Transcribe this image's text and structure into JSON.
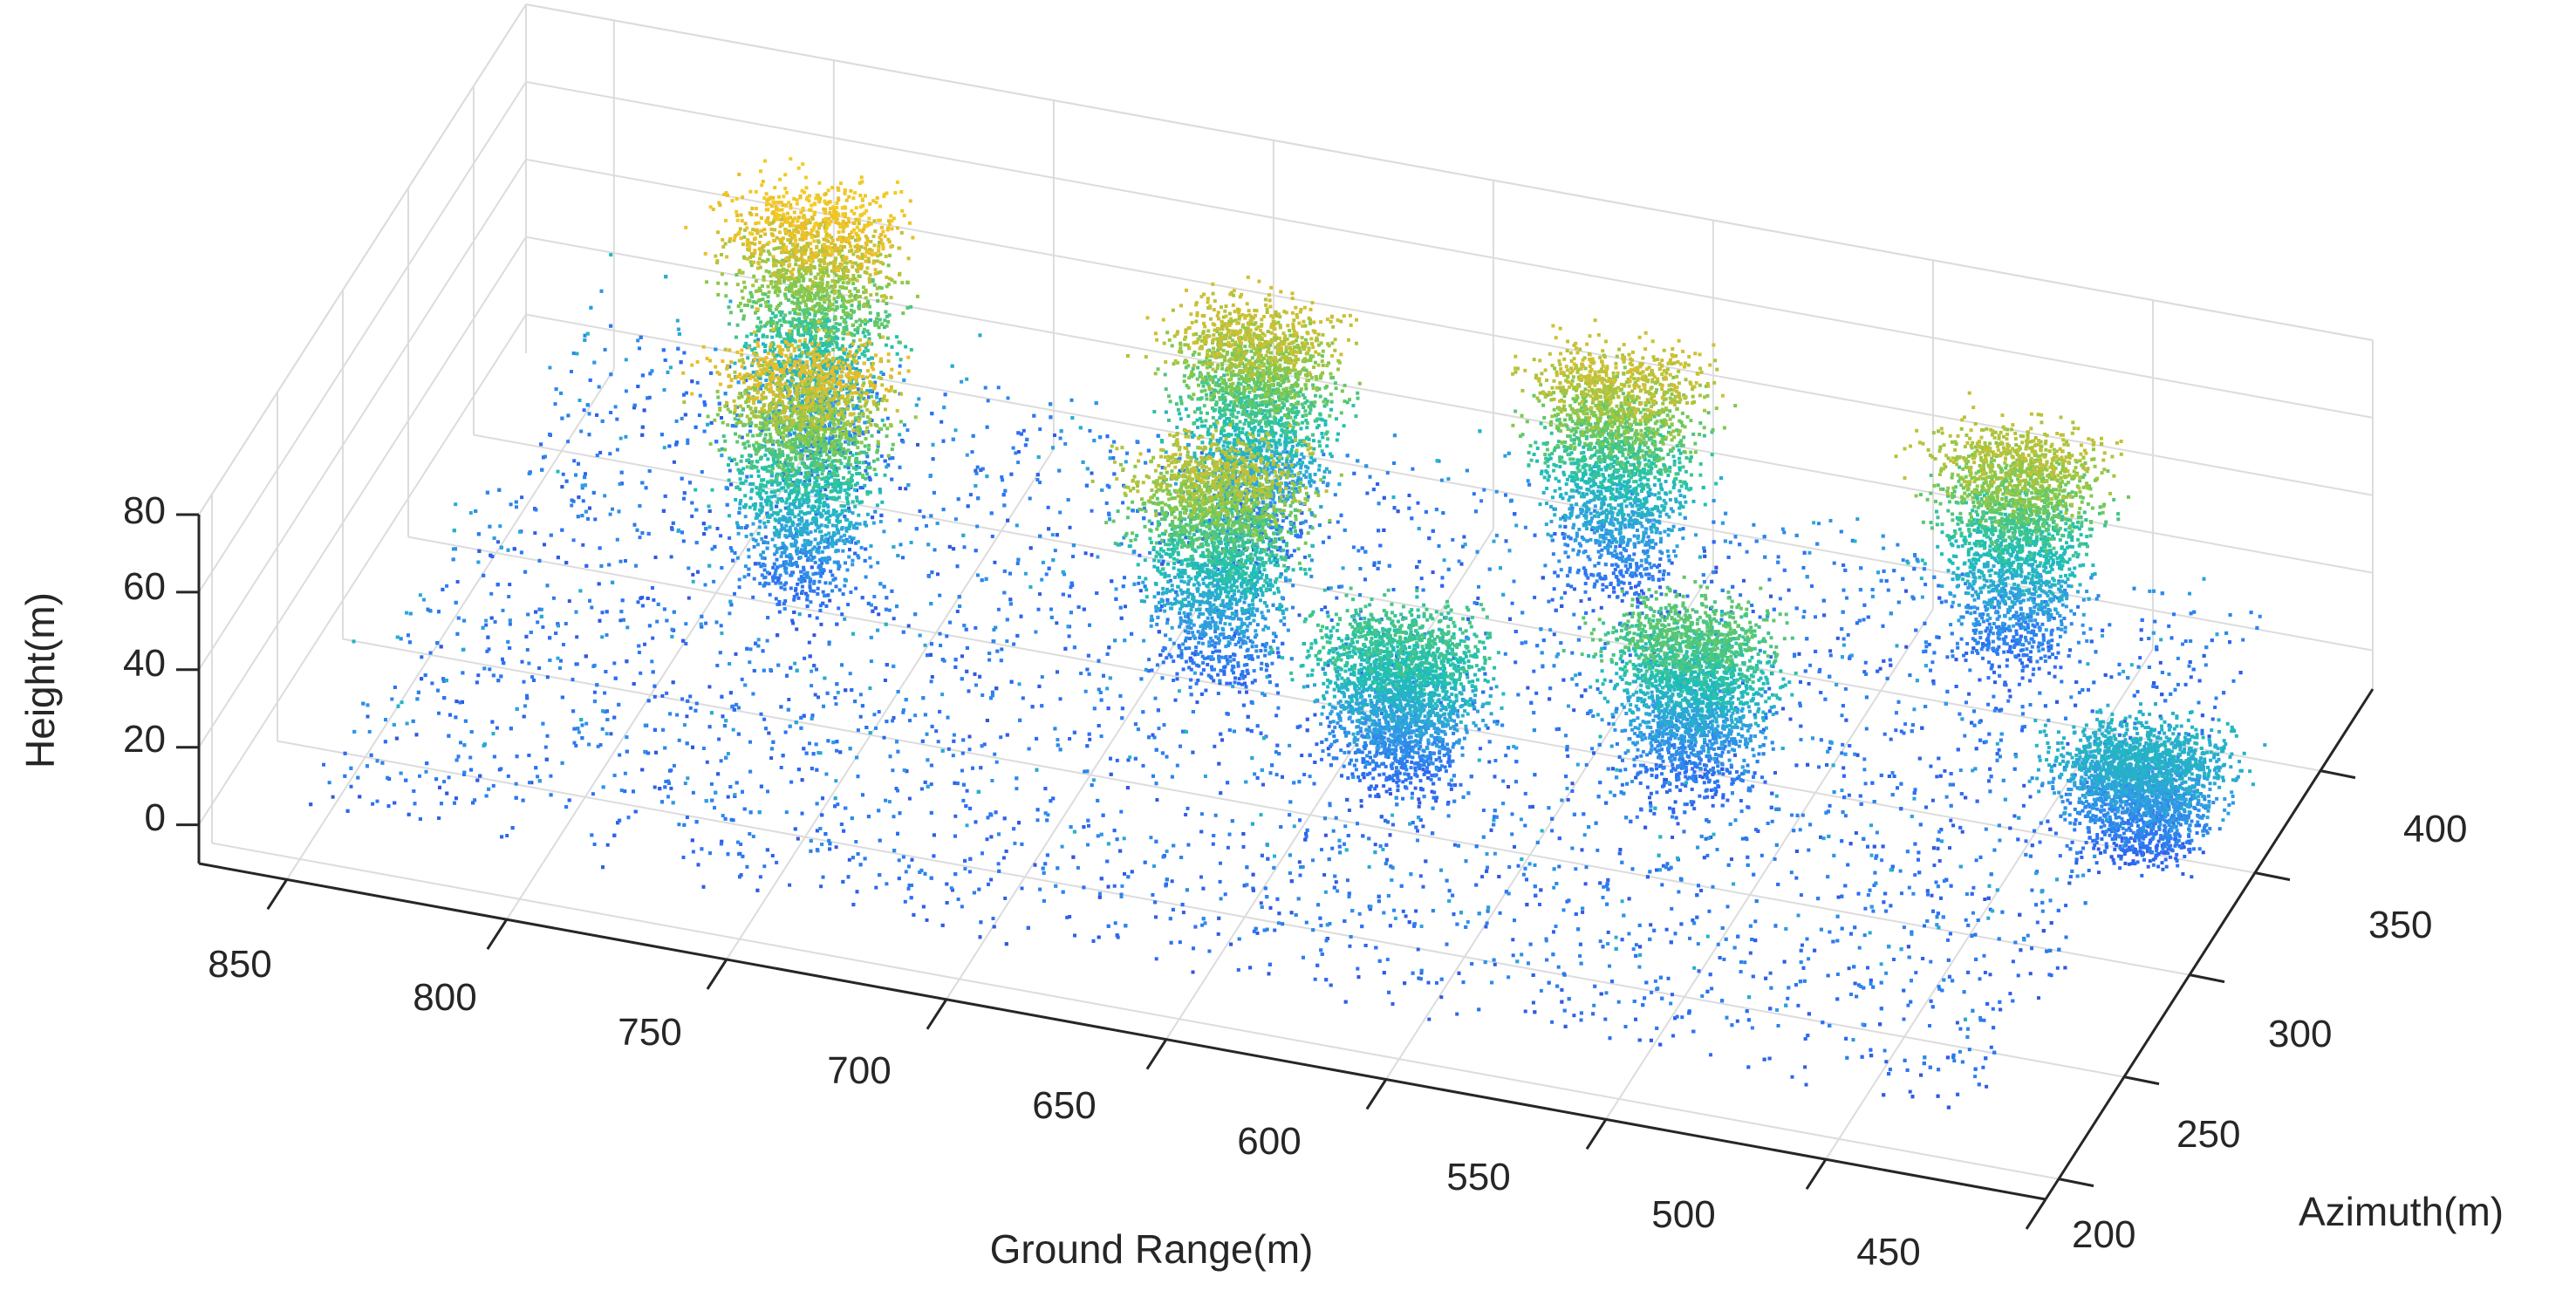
{
  "chart_data": {
    "type": "scatter",
    "subtype": "3d-point-cloud",
    "title": "",
    "xlabel": "Ground Range(m)",
    "ylabel": "Azimuth(m)",
    "zlabel": "Height(m)",
    "x_ticks": [
      "850",
      "800",
      "750",
      "700",
      "650",
      "600",
      "550",
      "500",
      "450"
    ],
    "y_ticks": [
      "200",
      "250",
      "300",
      "350",
      "400"
    ],
    "z_ticks": [
      "0",
      "20",
      "40",
      "60",
      "80"
    ],
    "xlim": [
      450,
      870
    ],
    "ylim": [
      190,
      440
    ],
    "zlim": [
      -10,
      80
    ],
    "grid": true,
    "colormap": "parula",
    "color_by": "height",
    "colorscale": [
      "#3e26a8",
      "#2c6cf4",
      "#2fa0e0",
      "#1ec2b0",
      "#7ec94d",
      "#ecbc2a",
      "#f9e21a"
    ],
    "trees": [
      {
        "ground_range": 790,
        "azimuth": 390,
        "height": 72
      },
      {
        "ground_range": 775,
        "azimuth": 330,
        "height": 66
      },
      {
        "ground_range": 690,
        "azimuth": 390,
        "height": 62
      },
      {
        "ground_range": 680,
        "azimuth": 330,
        "height": 60
      },
      {
        "ground_range": 610,
        "azimuth": 400,
        "height": 62
      },
      {
        "ground_range": 630,
        "azimuth": 300,
        "height": 42
      },
      {
        "ground_range": 520,
        "azimuth": 400,
        "height": 60
      },
      {
        "ground_range": 570,
        "azimuth": 320,
        "height": 46
      },
      {
        "ground_range": 470,
        "azimuth": 330,
        "height": 30
      }
    ]
  }
}
